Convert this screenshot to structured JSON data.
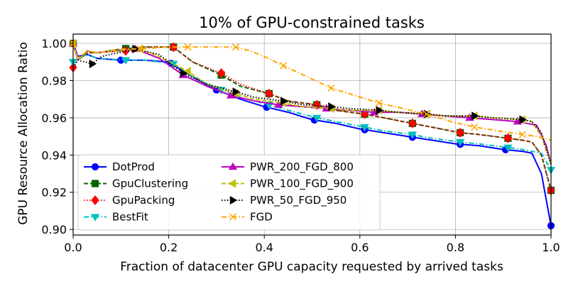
{
  "chart_data": {
    "type": "line",
    "title": "10% of GPU-constrained tasks",
    "xlabel": "Fraction of datacenter GPU capacity requested by arrived tasks",
    "ylabel": "GPU Resource Allocation Ratio",
    "xlim": [
      0.0,
      1.0
    ],
    "ylim": [
      0.897,
      1.005
    ],
    "xticks": [
      0.0,
      0.2,
      0.4,
      0.6,
      0.8,
      1.0
    ],
    "xtick_labels": [
      "0.0",
      "0.2",
      "0.4",
      "0.6",
      "0.8",
      "1.0"
    ],
    "yticks": [
      0.9,
      0.92,
      0.94,
      0.96,
      0.98,
      1.0
    ],
    "ytick_labels": [
      "0.90",
      "0.92",
      "0.94",
      "0.96",
      "0.98",
      "1.00"
    ],
    "grid": true,
    "legend_placement": "lower-left",
    "series": [
      {
        "name": "DotProd",
        "color": "#0000ff",
        "linestyle": "solid",
        "marker": "circle",
        "x": [
          0.0,
          0.01,
          0.03,
          0.05,
          0.1,
          0.15,
          0.2,
          0.25,
          0.3,
          0.35,
          0.4,
          0.45,
          0.5,
          0.55,
          0.6,
          0.65,
          0.7,
          0.75,
          0.8,
          0.85,
          0.9,
          0.94,
          0.96,
          0.98,
          1.0
        ],
        "y": [
          1.0,
          0.993,
          0.994,
          0.992,
          0.991,
          0.991,
          0.99,
          0.982,
          0.975,
          0.97,
          0.966,
          0.963,
          0.959,
          0.957,
          0.954,
          0.952,
          0.95,
          0.948,
          0.946,
          0.945,
          0.943,
          0.942,
          0.941,
          0.93,
          0.902
        ],
        "marker_x": [
          0.0,
          0.1,
          0.205,
          0.3,
          0.405,
          0.505,
          0.61,
          0.71,
          0.81,
          0.905,
          1.0
        ]
      },
      {
        "name": "GpuClustering",
        "color": "#006400",
        "linestyle": "dashed",
        "marker": "square",
        "x": [
          0.0,
          0.01,
          0.03,
          0.05,
          0.1,
          0.15,
          0.21,
          0.25,
          0.31,
          0.35,
          0.41,
          0.45,
          0.51,
          0.55,
          0.61,
          0.65,
          0.71,
          0.75,
          0.81,
          0.85,
          0.91,
          0.94,
          0.96,
          0.98,
          1.0
        ],
        "y": [
          1.0,
          0.991,
          0.995,
          0.995,
          0.997,
          0.998,
          0.998,
          0.99,
          0.983,
          0.977,
          0.973,
          0.969,
          0.967,
          0.964,
          0.962,
          0.96,
          0.957,
          0.955,
          0.952,
          0.951,
          0.949,
          0.948,
          0.947,
          0.94,
          0.921
        ],
        "marker_x": [
          0.0,
          0.11,
          0.21,
          0.31,
          0.41,
          0.51,
          0.61,
          0.71,
          0.81,
          0.91,
          1.0
        ]
      },
      {
        "name": "GpuPacking",
        "color": "#ff0000",
        "linestyle": "dotted",
        "marker": "diamond",
        "x": [
          0.0,
          0.01,
          0.03,
          0.05,
          0.11,
          0.15,
          0.21,
          0.25,
          0.31,
          0.35,
          0.41,
          0.45,
          0.51,
          0.55,
          0.61,
          0.65,
          0.71,
          0.75,
          0.81,
          0.85,
          0.91,
          0.94,
          0.96,
          0.98,
          1.0
        ],
        "y": [
          0.987,
          0.991,
          0.995,
          0.995,
          0.996,
          0.998,
          0.998,
          0.99,
          0.984,
          0.978,
          0.973,
          0.969,
          0.967,
          0.964,
          0.962,
          0.96,
          0.957,
          0.955,
          0.952,
          0.951,
          0.949,
          0.948,
          0.947,
          0.94,
          0.921
        ],
        "marker_x": [
          0.0,
          0.11,
          0.21,
          0.31,
          0.41,
          0.51,
          0.61,
          0.71,
          0.81,
          0.91,
          1.0
        ]
      },
      {
        "name": "BestFit",
        "color": "#00bfbf",
        "linestyle": "dashdot",
        "marker": "triangle-down",
        "x": [
          0.0,
          0.01,
          0.03,
          0.05,
          0.11,
          0.15,
          0.21,
          0.25,
          0.31,
          0.35,
          0.41,
          0.45,
          0.51,
          0.55,
          0.61,
          0.65,
          0.71,
          0.75,
          0.81,
          0.85,
          0.91,
          0.94,
          0.96,
          0.98,
          1.0
        ],
        "y": [
          0.99,
          0.992,
          0.994,
          0.992,
          0.991,
          0.991,
          0.989,
          0.982,
          0.975,
          0.971,
          0.967,
          0.964,
          0.96,
          0.958,
          0.955,
          0.953,
          0.951,
          0.949,
          0.947,
          0.946,
          0.944,
          0.943,
          0.942,
          0.941,
          0.932
        ],
        "marker_x": [
          0.0,
          0.11,
          0.21,
          0.31,
          0.41,
          0.51,
          0.61,
          0.71,
          0.81,
          0.91,
          1.0
        ]
      },
      {
        "name": "PWR_200_FGD_800",
        "color": "#bf00bf",
        "linestyle": "solid",
        "marker": "triangle-up",
        "x": [
          0.0,
          0.01,
          0.03,
          0.05,
          0.13,
          0.18,
          0.23,
          0.28,
          0.33,
          0.38,
          0.43,
          0.48,
          0.53,
          0.58,
          0.63,
          0.68,
          0.73,
          0.78,
          0.83,
          0.88,
          0.93,
          0.95,
          0.97,
          0.99,
          1.0
        ],
        "y": [
          1.0,
          0.991,
          0.996,
          0.995,
          0.997,
          0.992,
          0.983,
          0.977,
          0.972,
          0.969,
          0.967,
          0.966,
          0.965,
          0.964,
          0.963,
          0.963,
          0.962,
          0.961,
          0.96,
          0.959,
          0.958,
          0.957,
          0.956,
          0.945,
          0.935
        ],
        "marker_x": [
          0.0,
          0.13,
          0.23,
          0.33,
          0.43,
          0.53,
          0.63,
          0.73,
          0.83,
          0.93
        ]
      },
      {
        "name": "PWR_100_FGD_900",
        "color": "#bfbf00",
        "linestyle": "dashed",
        "marker": "triangle-left",
        "x": [
          0.0,
          0.01,
          0.03,
          0.05,
          0.14,
          0.18,
          0.24,
          0.28,
          0.34,
          0.38,
          0.44,
          0.48,
          0.54,
          0.58,
          0.64,
          0.68,
          0.74,
          0.78,
          0.84,
          0.88,
          0.94,
          0.96,
          0.98,
          1.0
        ],
        "y": [
          1.0,
          0.991,
          0.996,
          0.995,
          0.997,
          0.993,
          0.985,
          0.978,
          0.973,
          0.97,
          0.968,
          0.966,
          0.965,
          0.964,
          0.964,
          0.963,
          0.962,
          0.961,
          0.961,
          0.96,
          0.959,
          0.958,
          0.95,
          0.935
        ],
        "marker_x": [
          0.0,
          0.14,
          0.24,
          0.34,
          0.44,
          0.54,
          0.64,
          0.74,
          0.84,
          0.94
        ]
      },
      {
        "name": "PWR_50_FGD_950",
        "color": "#000000",
        "linestyle": "dotted",
        "marker": "triangle-right",
        "x": [
          0.0,
          0.01,
          0.04,
          0.06,
          0.13,
          0.18,
          0.23,
          0.28,
          0.34,
          0.38,
          0.44,
          0.48,
          0.54,
          0.58,
          0.64,
          0.68,
          0.74,
          0.78,
          0.84,
          0.88,
          0.94,
          0.96,
          0.98,
          1.0
        ],
        "y": [
          0.987,
          0.991,
          0.989,
          0.993,
          0.997,
          0.994,
          0.984,
          0.978,
          0.974,
          0.971,
          0.969,
          0.967,
          0.966,
          0.965,
          0.964,
          0.963,
          0.962,
          0.961,
          0.961,
          0.96,
          0.959,
          0.958,
          0.952,
          0.935
        ],
        "marker_x": [
          0.04,
          0.13,
          0.23,
          0.34,
          0.44,
          0.54,
          0.64,
          0.74,
          0.84,
          0.94
        ]
      },
      {
        "name": "FGD",
        "color": "#ffa500",
        "linestyle": "dashdot",
        "marker": "x",
        "x": [
          0.0,
          0.01,
          0.03,
          0.05,
          0.1,
          0.14,
          0.19,
          0.24,
          0.3,
          0.34,
          0.37,
          0.4,
          0.44,
          0.49,
          0.54,
          0.59,
          0.64,
          0.69,
          0.74,
          0.79,
          0.84,
          0.89,
          0.94,
          0.97,
          1.0
        ],
        "y": [
          1.0,
          0.992,
          0.996,
          0.995,
          0.997,
          0.997,
          0.998,
          0.998,
          0.998,
          0.998,
          0.996,
          0.993,
          0.988,
          0.982,
          0.976,
          0.972,
          0.968,
          0.965,
          0.962,
          0.958,
          0.955,
          0.953,
          0.951,
          0.95,
          0.948
        ],
        "marker_x": [
          0.0,
          0.14,
          0.24,
          0.34,
          0.44,
          0.54,
          0.64,
          0.74,
          0.84,
          0.94
        ]
      }
    ]
  }
}
